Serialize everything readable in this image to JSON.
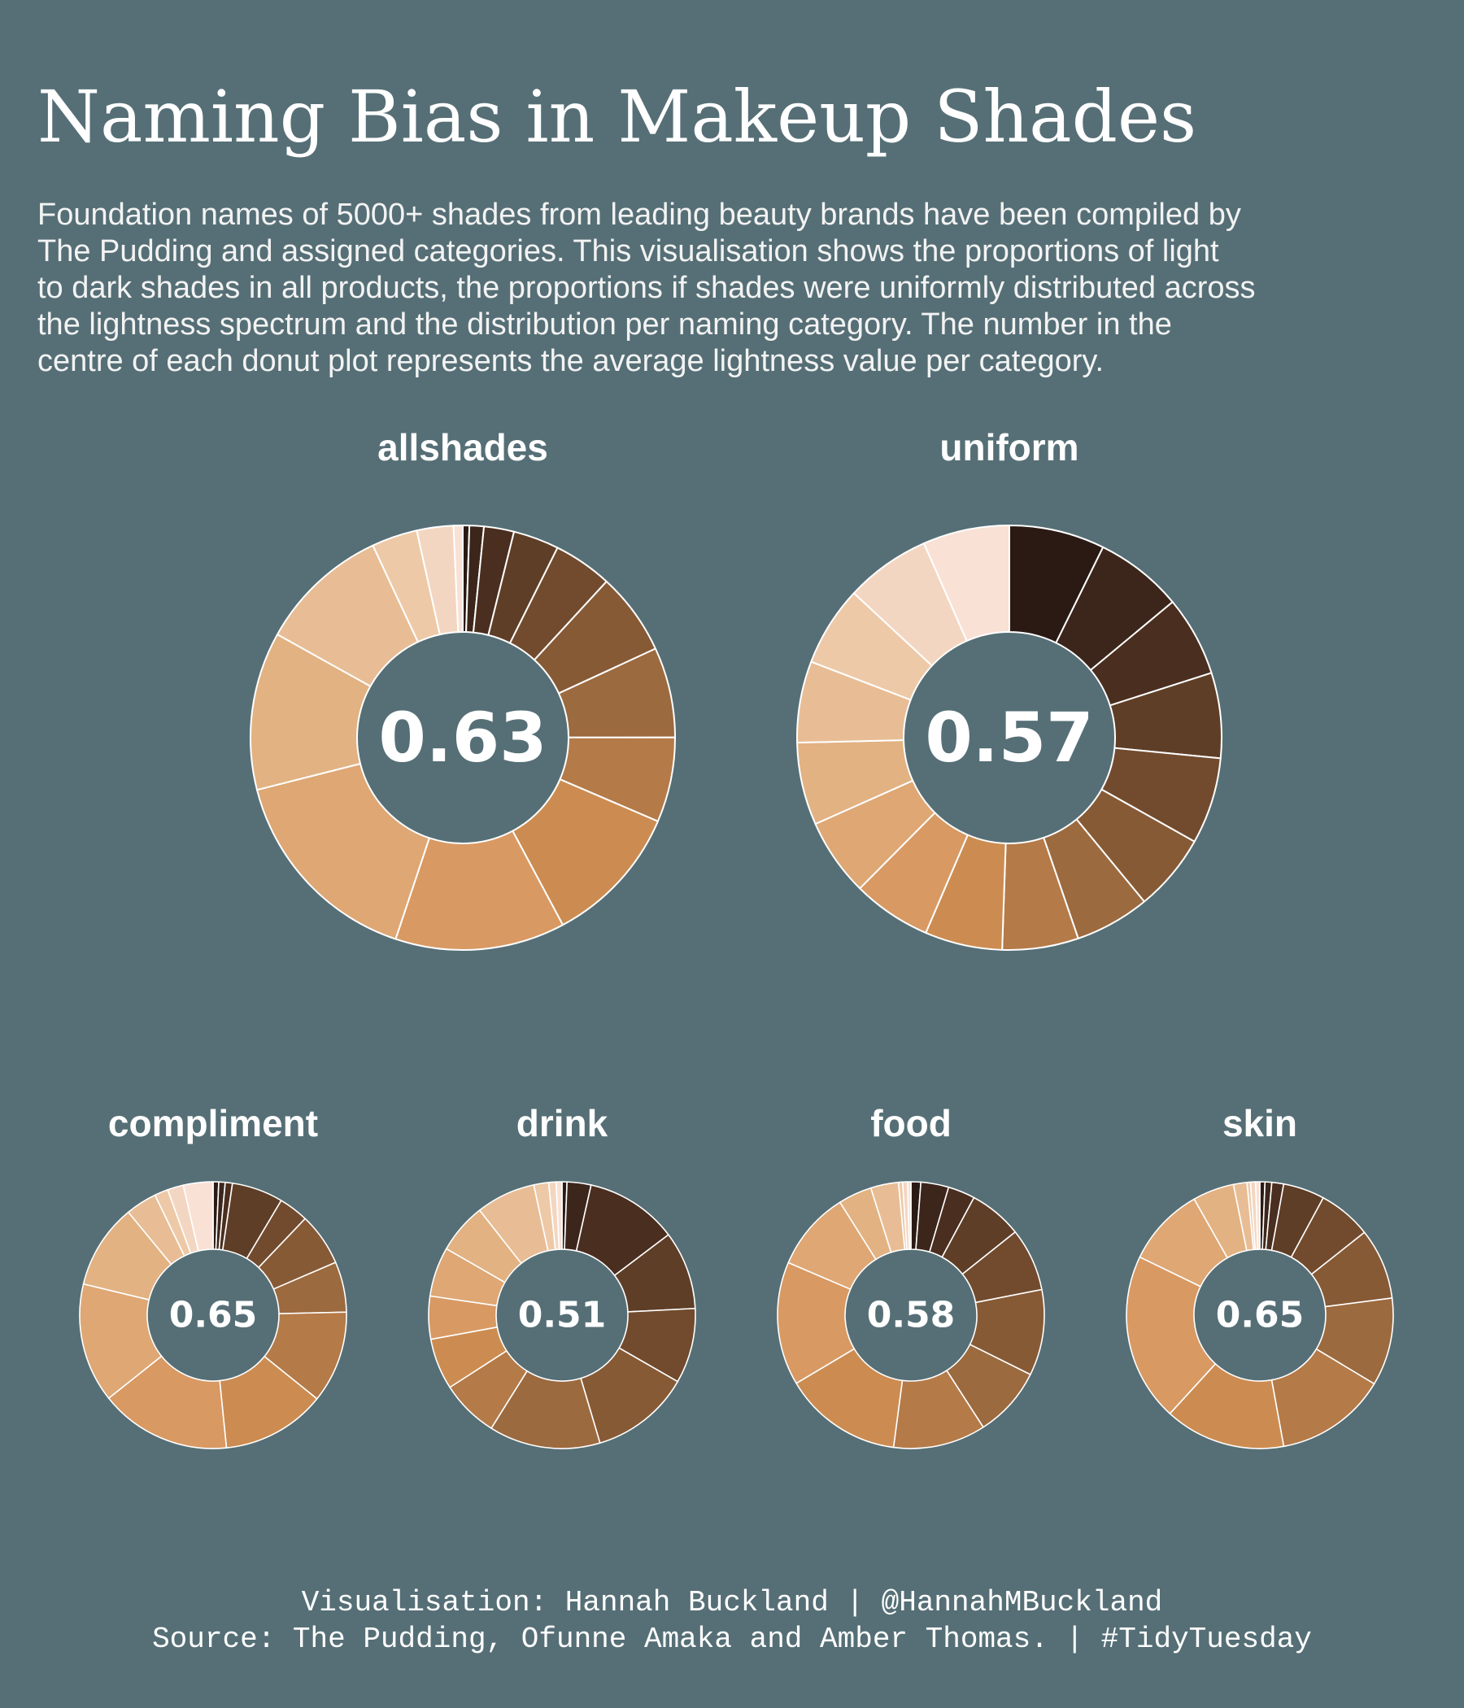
{
  "title": "Naming Bias in Makeup Shades",
  "subtitle_lines": [
    "Foundation names of 5000+ shades from leading beauty brands have been compiled by",
    "The Pudding and assigned categories. This visualisation shows the proportions of light",
    "to dark shades in all products, the proportions if shades were uniformly distributed across",
    "the lightness spectrum and the distribution per naming category. The number in the",
    "centre of each donut plot represents the average lightness value per category."
  ],
  "caption": {
    "line1": "Visualisation: Hannah Buckland | @HannahMBuckland",
    "line2": "Source: The Pudding, Ofunne Amaka and Amber Thomas. | #TidyTuesday"
  },
  "colors": {
    "background": "#566f76",
    "separator": "#ffffff",
    "shades_dark_to_light": [
      "#2b1a14",
      "#3c261b",
      "#4a2e1f",
      "#5f3e27",
      "#724b2e",
      "#875a36",
      "#9c6a3f",
      "#b47a48",
      "#cc8c51",
      "#d89963",
      "#dea774",
      "#e2b282",
      "#e8bd95",
      "#edc9a7",
      "#f3d6c1",
      "#f9e1d5"
    ]
  },
  "chart_data": [
    {
      "type": "donut",
      "title": "allshades",
      "center_label": "0.63",
      "segments_dark_to_light": [
        0.5,
        1.1,
        2.3,
        3.5,
        4.5,
        6.3,
        6.9,
        6.5,
        10.8,
        13.0,
        16.0,
        12.1,
        10.0,
        3.5,
        2.8,
        0.7
      ]
    },
    {
      "type": "donut",
      "title": "uniform",
      "center_label": "0.57",
      "segments_dark_to_light": [
        7.4,
        6.8,
        6.2,
        6.6,
        6.7,
        6.0,
        5.8,
        5.9,
        6.0,
        6.1,
        6.0,
        6.4,
        6.3,
        6.2,
        6.6,
        6.7
      ]
    },
    {
      "type": "donut",
      "title": "compliment",
      "center_label": "0.65",
      "segments_dark_to_light": [
        0.7,
        0.8,
        0.9,
        6.4,
        3.7,
        6.6,
        6.3,
        11.5,
        13.0,
        16.4,
        14.9,
        10.6,
        3.9,
        1.7,
        2.0,
        3.7
      ]
    },
    {
      "type": "donut",
      "title": "drink",
      "center_label": "0.51",
      "segments_dark_to_light": [
        0.6,
        2.9,
        11.2,
        9.5,
        9.1,
        12.1,
        13.5,
        7.0,
        6.2,
        5.2,
        6.0,
        6.1,
        7.2,
        1.8,
        0.9,
        0.7
      ]
    },
    {
      "type": "donut",
      "title": "food",
      "center_label": "0.58",
      "segments_dark_to_light": [
        1.2,
        3.4,
        3.3,
        6.5,
        7.7,
        10.5,
        8.6,
        11.3,
        14.5,
        15.1,
        9.7,
        4.1,
        3.4,
        0.5,
        0.6,
        0.4
      ]
    },
    {
      "type": "donut",
      "title": "skin",
      "center_label": "0.65",
      "segments_dark_to_light": [
        0.6,
        0.8,
        1.4,
        4.9,
        6.3,
        8.4,
        10.4,
        13.2,
        14.3,
        19.9,
        9.4,
        4.9,
        1.6,
        0.4,
        0.6,
        0.5
      ]
    }
  ]
}
